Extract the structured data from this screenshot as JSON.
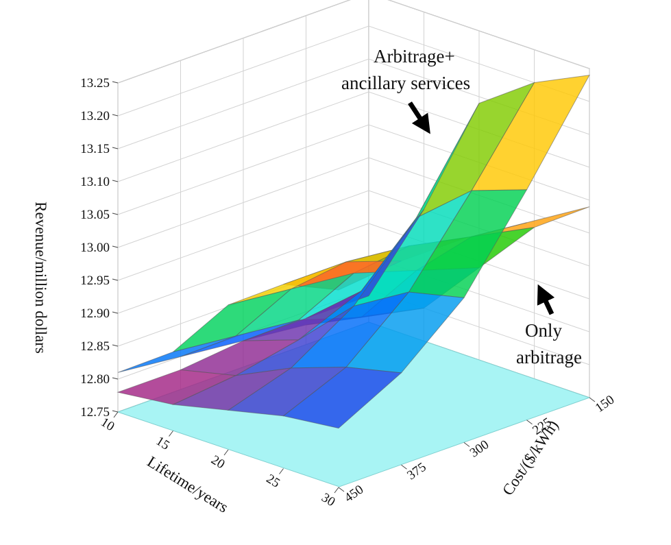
{
  "chart_data": {
    "type": "surface",
    "zlabel": "Revenue/million dollars",
    "xlabel": "Lifetime/years",
    "ylabel": "Cost/($/kWh)",
    "zlim": [
      12.75,
      13.25
    ],
    "z_ticks": [
      "12.75",
      "12.80",
      "12.85",
      "12.90",
      "12.95",
      "13.00",
      "13.05",
      "13.10",
      "13.15",
      "13.20",
      "13.25"
    ],
    "x_ticks": [
      "10",
      "15",
      "20",
      "25",
      "30"
    ],
    "y_ticks": [
      "150",
      "225",
      "300",
      "375",
      "450"
    ],
    "lifetime": [
      10,
      15,
      20,
      25,
      30
    ],
    "cost": [
      150,
      225,
      300,
      375,
      450
    ],
    "grid": true,
    "floor_color": "#a8f4f4",
    "colormap": [
      "#ff3030",
      "#ffd000",
      "#00c800",
      "#00e0e0",
      "#0050ff",
      "#b0207a"
    ],
    "series": [
      {
        "name": "Arbitrage+ ancillary services",
        "values": [
          [
            12.79,
            12.95,
            13.14,
            13.2,
            13.24
          ],
          [
            12.79,
            12.86,
            13.0,
            13.07,
            13.1
          ],
          [
            12.79,
            12.82,
            12.9,
            12.95,
            12.97
          ],
          [
            12.78,
            12.8,
            12.84,
            12.87,
            12.89
          ],
          [
            12.78,
            12.79,
            12.81,
            12.83,
            12.84
          ]
        ]
      },
      {
        "name": "Only arbitrage",
        "values": [
          [
            12.76,
            12.8,
            12.89,
            12.98,
            13.04
          ],
          [
            12.78,
            12.82,
            12.92,
            13.0,
            13.05
          ],
          [
            12.79,
            12.85,
            12.95,
            13.02,
            13.06
          ],
          [
            12.8,
            12.86,
            12.96,
            13.03,
            13.06
          ],
          [
            12.81,
            12.87,
            12.97,
            13.03,
            13.05
          ]
        ]
      }
    ],
    "annotations": [
      "Arbitrage+",
      "ancillary services",
      "Only",
      "arbitrage"
    ]
  }
}
